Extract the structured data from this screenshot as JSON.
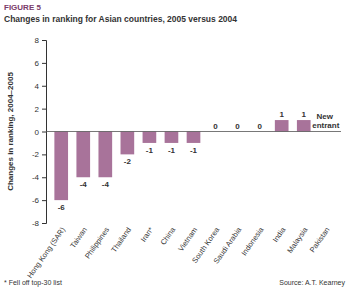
{
  "chart_data": {
    "type": "bar",
    "figure_label": "FIGURE 5",
    "title": "Changes in ranking for Asian countries, 2005 versus 2004",
    "y_label": "Changes in ranking, 2004–2005",
    "categories": [
      "Hong Kong (SAR)",
      "Taiwan",
      "Philippines",
      "Thailand",
      "Iran*",
      "China",
      "Vietnam",
      "South Korea",
      "Saudi Arabia",
      "Indonesia",
      "India",
      "Malaysia",
      "Pakistan"
    ],
    "values": [
      -6,
      -4,
      -4,
      -2,
      -1,
      -1,
      -1,
      0,
      0,
      0,
      1,
      1,
      null
    ],
    "value_labels": [
      "-6",
      "-4",
      "-4",
      "-2",
      "-1",
      "-1",
      "-1",
      "0",
      "0",
      "0",
      "1",
      "1",
      "New entrant"
    ],
    "color": "#a8739a",
    "ylim": [
      -8,
      8
    ],
    "yticks": [
      -8,
      -6,
      -4,
      -2,
      0,
      2,
      4,
      6,
      8
    ],
    "grid": false,
    "data_labels": true,
    "footnote": "* Fell off top-30 list",
    "source": "Source: A.T. Kearney"
  }
}
